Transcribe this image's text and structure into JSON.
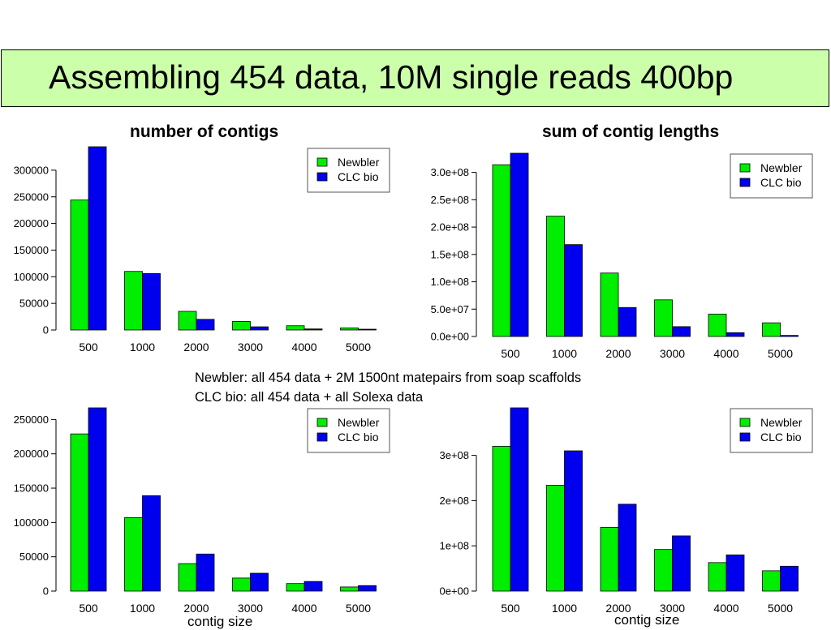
{
  "header": {
    "title": "Assembling 454 data, 10M single reads 400bp"
  },
  "panel_titles": {
    "left": "number of contigs",
    "right": "sum of contig lengths"
  },
  "notes": [
    "Newbler: all 454 data + 2M 1500nt matepairs from soap scaffolds",
    "CLC bio: all 454 data + all Solexa data"
  ],
  "x_labels": {
    "left": "contig size",
    "right": "contig size"
  },
  "colors": {
    "newbler": "#00ee00",
    "clcbio": "#0000ee",
    "title_bg": "#ccffaa"
  },
  "chart_data": [
    {
      "type": "bar",
      "title": "number of contigs",
      "xlabel": "",
      "ylabel": "",
      "categories": [
        "500",
        "1000",
        "2000",
        "3000",
        "4000",
        "5000"
      ],
      "series": [
        {
          "name": "Newbler",
          "values": [
            244000,
            110000,
            35000,
            16000,
            8000,
            4000
          ]
        },
        {
          "name": "CLC bio",
          "values": [
            344000,
            106000,
            20000,
            6000,
            2000,
            1500
          ]
        }
      ],
      "ylim": [
        0,
        344000
      ],
      "yticks": [
        0,
        50000,
        100000,
        150000,
        200000,
        250000,
        300000
      ],
      "yticklabels": [
        "0",
        "50000",
        "100000",
        "150000",
        "200000",
        "250000",
        "300000"
      ],
      "legend": "top-right",
      "grid": false
    },
    {
      "type": "bar",
      "title": "sum of contig lengths",
      "xlabel": "",
      "ylabel": "",
      "categories": [
        "500",
        "1000",
        "2000",
        "3000",
        "4000",
        "5000"
      ],
      "series": [
        {
          "name": "Newbler",
          "values": [
            314000000,
            220000000,
            116000000,
            67000000,
            41000000,
            25000000
          ]
        },
        {
          "name": "CLC bio",
          "values": [
            335000000,
            168000000,
            53000000,
            18000000,
            7000000,
            2000000
          ]
        }
      ],
      "ylim": [
        0,
        335000000
      ],
      "yticks": [
        0,
        50000000,
        100000000,
        150000000,
        200000000,
        250000000,
        300000000
      ],
      "yticklabels": [
        "0.0e+00",
        "5.0e+07",
        "1.0e+08",
        "1.5e+08",
        "2.0e+08",
        "2.5e+08",
        "3.0e+08"
      ],
      "legend": "top-right",
      "grid": false
    },
    {
      "type": "bar",
      "title": "",
      "xlabel": "contig size",
      "ylabel": "",
      "categories": [
        "500",
        "1000",
        "2000",
        "3000",
        "4000",
        "5000"
      ],
      "series": [
        {
          "name": "Newbler",
          "values": [
            229000,
            107000,
            40000,
            19000,
            11000,
            6000
          ]
        },
        {
          "name": "CLC bio",
          "values": [
            267000,
            139000,
            54000,
            26000,
            14000,
            8000
          ]
        }
      ],
      "ylim": [
        0,
        267000
      ],
      "yticks": [
        0,
        50000,
        100000,
        150000,
        200000,
        250000
      ],
      "yticklabels": [
        "0",
        "50000",
        "100000",
        "150000",
        "200000",
        "250000"
      ],
      "legend": "top-right",
      "grid": false
    },
    {
      "type": "bar",
      "title": "",
      "xlabel": "contig size",
      "ylabel": "",
      "categories": [
        "500",
        "1000",
        "2000",
        "3000",
        "4000",
        "5000"
      ],
      "series": [
        {
          "name": "Newbler",
          "values": [
            320000000,
            234000000,
            141000000,
            92000000,
            63000000,
            45000000
          ]
        },
        {
          "name": "CLC bio",
          "values": [
            405000000,
            310000000,
            192000000,
            122000000,
            80000000,
            55000000
          ]
        }
      ],
      "ylim": [
        0,
        405000000
      ],
      "yticks": [
        0,
        100000000,
        200000000,
        300000000
      ],
      "yticklabels": [
        "0e+00",
        "1e+08",
        "2e+08",
        "3e+08"
      ],
      "legend": "top-right",
      "grid": false
    }
  ]
}
